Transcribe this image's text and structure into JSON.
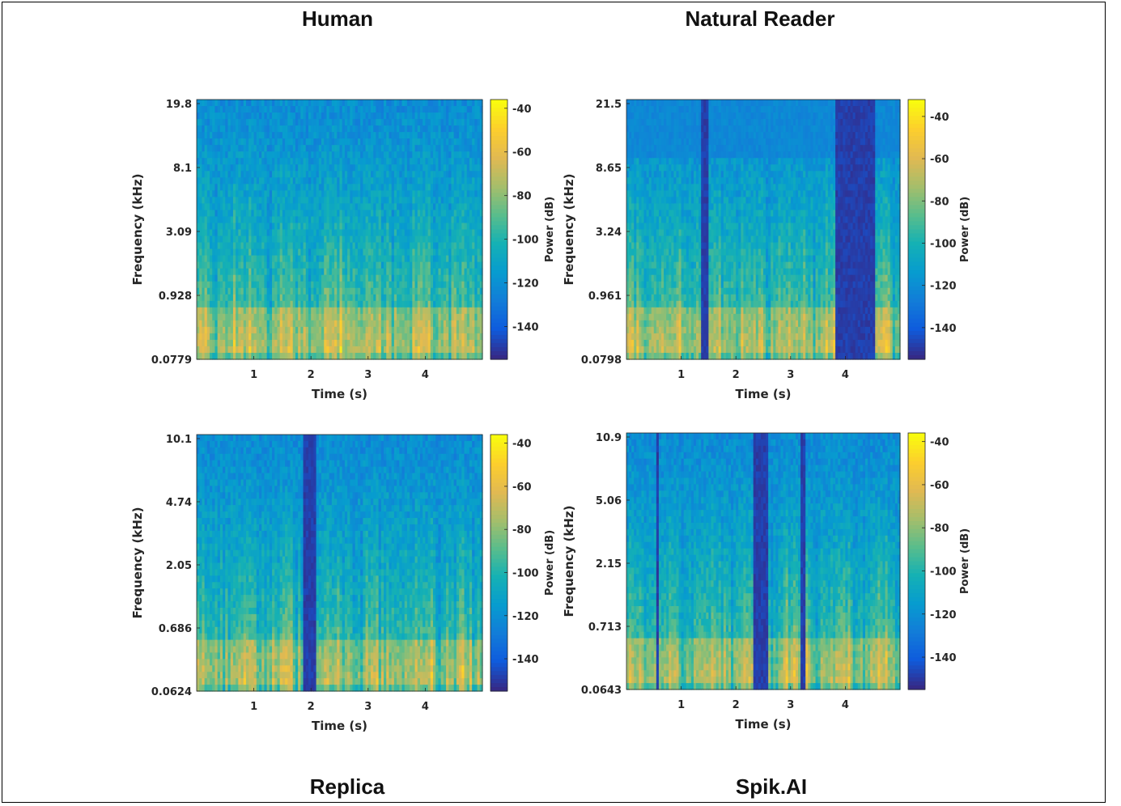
{
  "figure": {
    "titles": {
      "human": "Human",
      "natural_reader": "Natural Reader",
      "replica": "Replica",
      "spik_ai": "Spik.AI"
    }
  },
  "chart_data": [
    {
      "id": "human",
      "type": "heatmap",
      "title": "Human",
      "xlabel": "Time (s)",
      "ylabel": "Frequency (kHz)",
      "colorbar_label": "Power (dB)",
      "x_ticks": [
        1,
        2,
        3,
        4
      ],
      "xlim": [
        0,
        5
      ],
      "y_tick_labels": [
        "19.8",
        "8.1",
        "3.09",
        "0.928",
        "0.0779"
      ],
      "colorbar_ticks": [
        -40,
        -60,
        -80,
        -100,
        -120,
        -140
      ],
      "clim": [
        -155,
        -36
      ],
      "scale": "log-frequency",
      "silent_time_ranges": []
    },
    {
      "id": "natural_reader",
      "type": "heatmap",
      "title": "Natural Reader",
      "xlabel": "Time (s)",
      "ylabel": "Frequency (kHz)",
      "colorbar_label": "Power (dB)",
      "x_ticks": [
        1,
        2,
        3,
        4
      ],
      "xlim": [
        0,
        5
      ],
      "y_tick_labels": [
        "21.5",
        "8.65",
        "3.24",
        "0.961",
        "0.0798"
      ],
      "colorbar_ticks": [
        -40,
        -60,
        -80,
        -100,
        -120,
        -140
      ],
      "clim": [
        -155,
        -32
      ],
      "scale": "log-frequency",
      "silent_time_ranges": [
        [
          1.35,
          1.48
        ],
        [
          3.8,
          4.55
        ]
      ]
    },
    {
      "id": "replica",
      "type": "heatmap",
      "title": "Replica",
      "xlabel": "Time (s)",
      "ylabel": "Frequency (kHz)",
      "colorbar_label": "Power (dB)",
      "x_ticks": [
        1,
        2,
        3,
        4
      ],
      "xlim": [
        0,
        5
      ],
      "y_tick_labels": [
        "10.1",
        "4.74",
        "2.05",
        "0.686",
        "0.0624"
      ],
      "colorbar_ticks": [
        -40,
        -60,
        -80,
        -100,
        -120,
        -140
      ],
      "clim": [
        -155,
        -36
      ],
      "scale": "log-frequency",
      "silent_time_ranges": [
        [
          1.85,
          2.1
        ]
      ]
    },
    {
      "id": "spik_ai",
      "type": "heatmap",
      "title": "Spik.AI",
      "xlabel": "Time (s)",
      "ylabel": "Frequency (kHz)",
      "colorbar_label": "Power (dB)",
      "x_ticks": [
        1,
        2,
        3,
        4
      ],
      "xlim": [
        0,
        5
      ],
      "y_tick_labels": [
        "10.9",
        "5.06",
        "2.15",
        "0.713",
        "0.0643"
      ],
      "colorbar_ticks": [
        -40,
        -60,
        -80,
        -100,
        -120,
        -140
      ],
      "clim": [
        -155,
        -36
      ],
      "scale": "log-frequency",
      "silent_time_ranges": [
        [
          0.55,
          0.6
        ],
        [
          2.3,
          2.58
        ],
        [
          3.18,
          3.25
        ]
      ]
    }
  ]
}
